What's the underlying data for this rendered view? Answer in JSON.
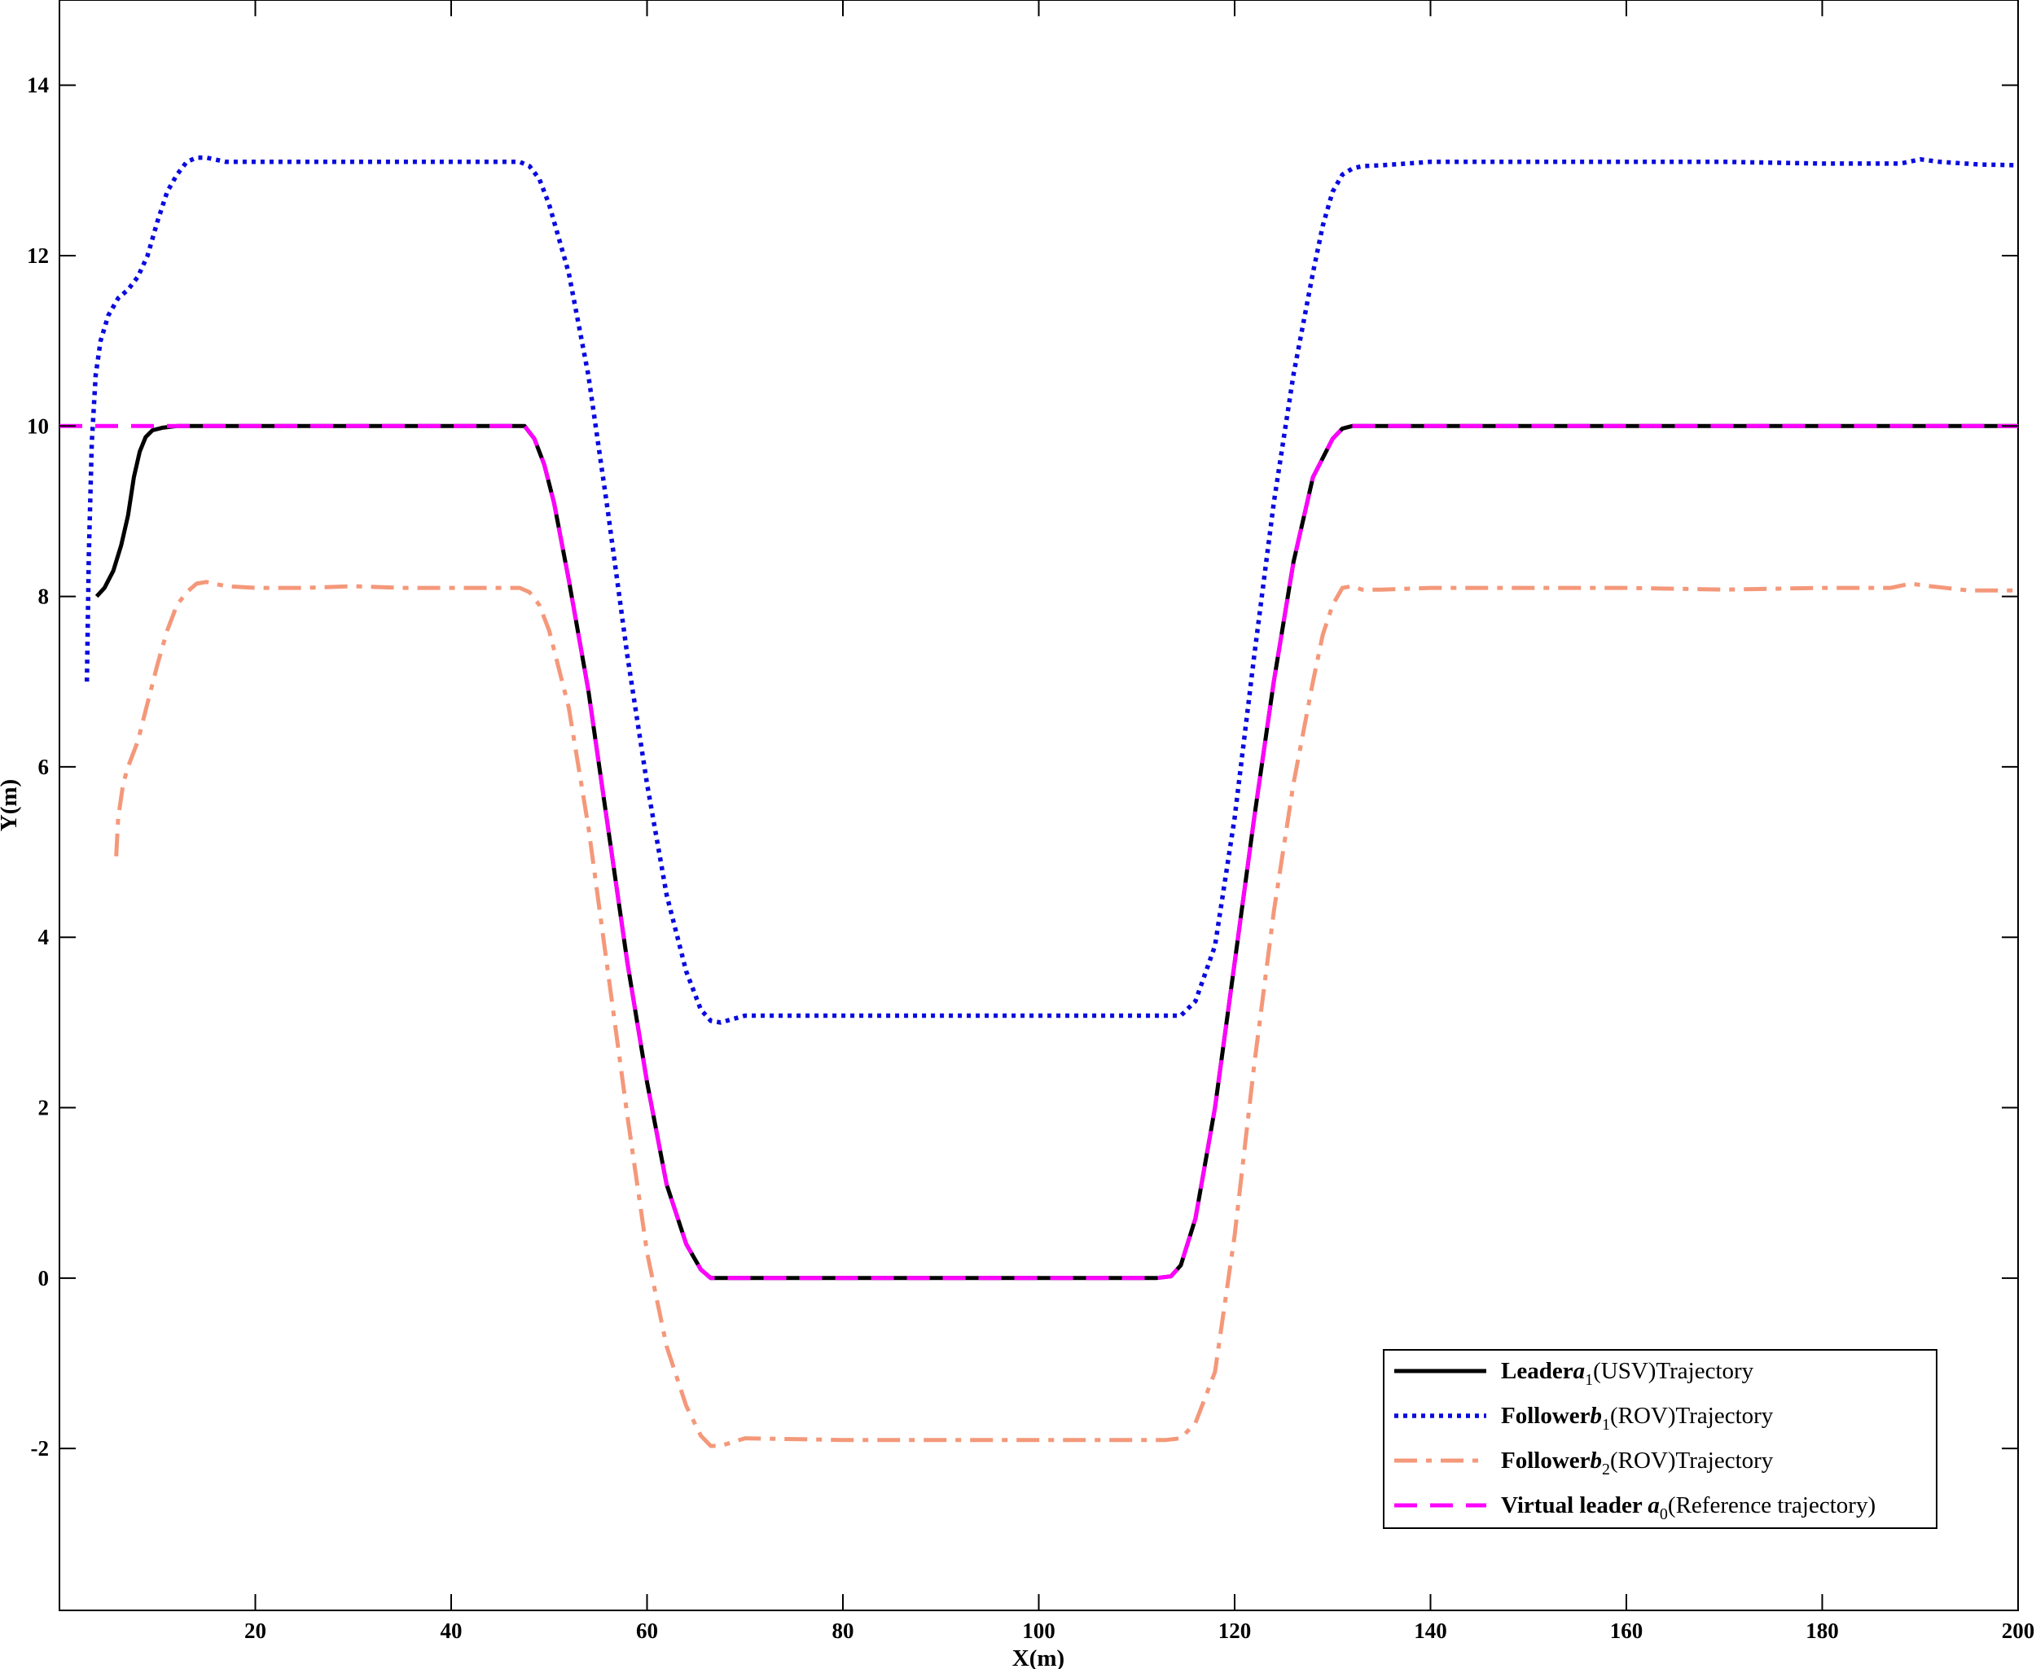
{
  "chart_data": {
    "type": "line",
    "xlabel": "X(m)",
    "ylabel": "Y(m)",
    "xlim": [
      0,
      200
    ],
    "ylim": [
      -3.9,
      15
    ],
    "xticks": [
      20,
      40,
      60,
      80,
      100,
      120,
      140,
      160,
      180,
      200
    ],
    "yticks": [
      -2,
      0,
      2,
      4,
      6,
      8,
      10,
      12,
      14
    ],
    "xtick_labels": [
      "20",
      "40",
      "60",
      "80",
      "100",
      "120",
      "140",
      "160",
      "180",
      "200"
    ],
    "ytick_labels": [
      "-2",
      "0",
      "2",
      "4",
      "6",
      "8",
      "10",
      "12",
      "14"
    ],
    "grid": false,
    "legend_position": "bottom-right",
    "series": [
      {
        "name_parts": {
          "bold": "Leader",
          "var": "a",
          "sub": "1",
          "rest": "(USV)Trajectory"
        },
        "color": "#000000",
        "style": "solid",
        "x": [
          3.8,
          4.6,
          5.5,
          6.3,
          7.0,
          7.6,
          8.2,
          8.8,
          9.5,
          10.5,
          12.0,
          14.0,
          20.0,
          30.0,
          40.0,
          46.0,
          47.5,
          48.5,
          49.5,
          50.5,
          52.0,
          54.0,
          56.0,
          58.0,
          60.0,
          62.0,
          64.0,
          65.5,
          66.5,
          68.0,
          80.0,
          100.0,
          112.0,
          113.5,
          114.5,
          116.0,
          118.0,
          120.0,
          122.0,
          124.0,
          126.0,
          128.0,
          130.0,
          131.0,
          132.0,
          133.0,
          140.0,
          160.0,
          180.0,
          200.0
        ],
        "y": [
          8.0,
          8.1,
          8.3,
          8.6,
          8.95,
          9.4,
          9.7,
          9.87,
          9.95,
          9.98,
          10.0,
          10.0,
          10.0,
          10.0,
          10.0,
          10.0,
          10.0,
          9.85,
          9.55,
          9.1,
          8.2,
          6.9,
          5.3,
          3.7,
          2.3,
          1.1,
          0.4,
          0.1,
          0.0,
          0.0,
          0.0,
          0.0,
          0.0,
          0.02,
          0.15,
          0.7,
          2.0,
          3.7,
          5.4,
          7.0,
          8.4,
          9.4,
          9.85,
          9.97,
          10.0,
          10.0,
          10.0,
          10.0,
          10.0,
          10.0
        ]
      },
      {
        "name_parts": {
          "bold": "Follower",
          "var": "b",
          "sub": "1",
          "rest": "(ROV)Trajectory"
        },
        "color": "#0a0adf",
        "style": "dotted",
        "x": [
          2.8,
          3.0,
          3.3,
          3.7,
          4.2,
          5.0,
          6.0,
          7.0,
          8.0,
          9.0,
          10.0,
          11.0,
          12.0,
          13.0,
          14.0,
          15.0,
          17.0,
          20.0,
          25.0,
          30.0,
          35.0,
          40.0,
          45.0,
          47.0,
          48.0,
          49.0,
          50.0,
          52.0,
          54.0,
          56.0,
          58.0,
          60.0,
          62.0,
          64.0,
          65.5,
          66.5,
          67.5,
          70.0,
          80.0,
          100.0,
          110.0,
          113.0,
          114.5,
          116.0,
          118.0,
          120.0,
          122.0,
          124.0,
          126.0,
          128.0,
          129.0,
          130.0,
          131.0,
          132.0,
          133.0,
          135.0,
          140.0,
          150.0,
          160.0,
          170.0,
          180.0,
          188.0,
          190.0,
          192.0,
          196.0,
          200.0
        ],
        "y": [
          7.0,
          8.5,
          9.8,
          10.6,
          11.0,
          11.3,
          11.5,
          11.6,
          11.75,
          12.0,
          12.4,
          12.75,
          12.95,
          13.1,
          13.15,
          13.15,
          13.1,
          13.1,
          13.1,
          13.1,
          13.1,
          13.1,
          13.1,
          13.1,
          13.05,
          12.9,
          12.6,
          11.8,
          10.6,
          9.0,
          7.3,
          5.8,
          4.5,
          3.6,
          3.15,
          3.02,
          3.0,
          3.08,
          3.08,
          3.08,
          3.08,
          3.08,
          3.08,
          3.25,
          3.9,
          5.4,
          7.3,
          9.1,
          10.6,
          11.8,
          12.35,
          12.75,
          12.95,
          13.02,
          13.05,
          13.06,
          13.1,
          13.1,
          13.1,
          13.1,
          13.08,
          13.08,
          13.13,
          13.1,
          13.07,
          13.06
        ]
      },
      {
        "name_parts": {
          "bold": "Follower",
          "var": "b",
          "sub": "2",
          "rest": "(ROV)Trajectory"
        },
        "color": "#f4987a",
        "style": "dashdot",
        "x": [
          5.8,
          6.0,
          6.5,
          7.0,
          8.0,
          9.0,
          10.0,
          11.0,
          12.0,
          13.0,
          14.0,
          15.0,
          17.0,
          20.0,
          25.0,
          30.0,
          35.0,
          40.0,
          45.0,
          47.0,
          48.0,
          49.0,
          50.0,
          52.0,
          54.0,
          56.0,
          58.0,
          60.0,
          62.0,
          64.0,
          65.5,
          66.5,
          67.5,
          70.0,
          80.0,
          90.0,
          100.0,
          110.0,
          113.0,
          114.5,
          116.0,
          118.0,
          120.0,
          122.0,
          124.0,
          126.0,
          128.0,
          129.0,
          130.0,
          131.0,
          132.0,
          133.0,
          135.0,
          140.0,
          150.0,
          160.0,
          170.0,
          180.0,
          187.0,
          189.0,
          191.0,
          195.0,
          200.0
        ],
        "y": [
          4.95,
          5.4,
          5.8,
          6.0,
          6.3,
          6.75,
          7.2,
          7.6,
          7.9,
          8.05,
          8.15,
          8.17,
          8.12,
          8.1,
          8.1,
          8.12,
          8.1,
          8.1,
          8.1,
          8.1,
          8.05,
          7.9,
          7.6,
          6.7,
          5.3,
          3.6,
          1.9,
          0.3,
          -0.8,
          -1.5,
          -1.85,
          -1.97,
          -1.97,
          -1.88,
          -1.9,
          -1.9,
          -1.9,
          -1.9,
          -1.9,
          -1.88,
          -1.7,
          -1.1,
          0.5,
          2.5,
          4.3,
          5.8,
          7.0,
          7.55,
          7.9,
          8.1,
          8.12,
          8.08,
          8.08,
          8.1,
          8.1,
          8.1,
          8.08,
          8.1,
          8.1,
          8.15,
          8.12,
          8.07,
          8.07
        ]
      },
      {
        "name_parts": {
          "bold": "Virtual leader ",
          "var": "a",
          "sub": "0",
          "rest": "(Reference trajectory)"
        },
        "color": "#ff00ff",
        "style": "dashed",
        "x": [
          0.0,
          10.0,
          20.0,
          40.0,
          46.0,
          47.5,
          48.5,
          49.5,
          50.5,
          52.0,
          54.0,
          56.0,
          58.0,
          60.0,
          62.0,
          64.0,
          65.5,
          66.5,
          68.0,
          80.0,
          100.0,
          112.0,
          113.5,
          114.5,
          116.0,
          118.0,
          120.0,
          122.0,
          124.0,
          126.0,
          128.0,
          130.0,
          131.0,
          132.0,
          133.0,
          140.0,
          160.0,
          180.0,
          200.0
        ],
        "y": [
          10.0,
          10.0,
          10.0,
          10.0,
          10.0,
          10.0,
          9.85,
          9.55,
          9.1,
          8.2,
          6.9,
          5.3,
          3.7,
          2.3,
          1.1,
          0.4,
          0.1,
          0.0,
          0.0,
          0.0,
          0.0,
          0.0,
          0.02,
          0.15,
          0.7,
          2.0,
          3.7,
          5.4,
          7.0,
          8.4,
          9.4,
          9.85,
          9.97,
          10.0,
          10.0,
          10.0,
          10.0,
          10.0,
          10.0
        ]
      }
    ]
  }
}
